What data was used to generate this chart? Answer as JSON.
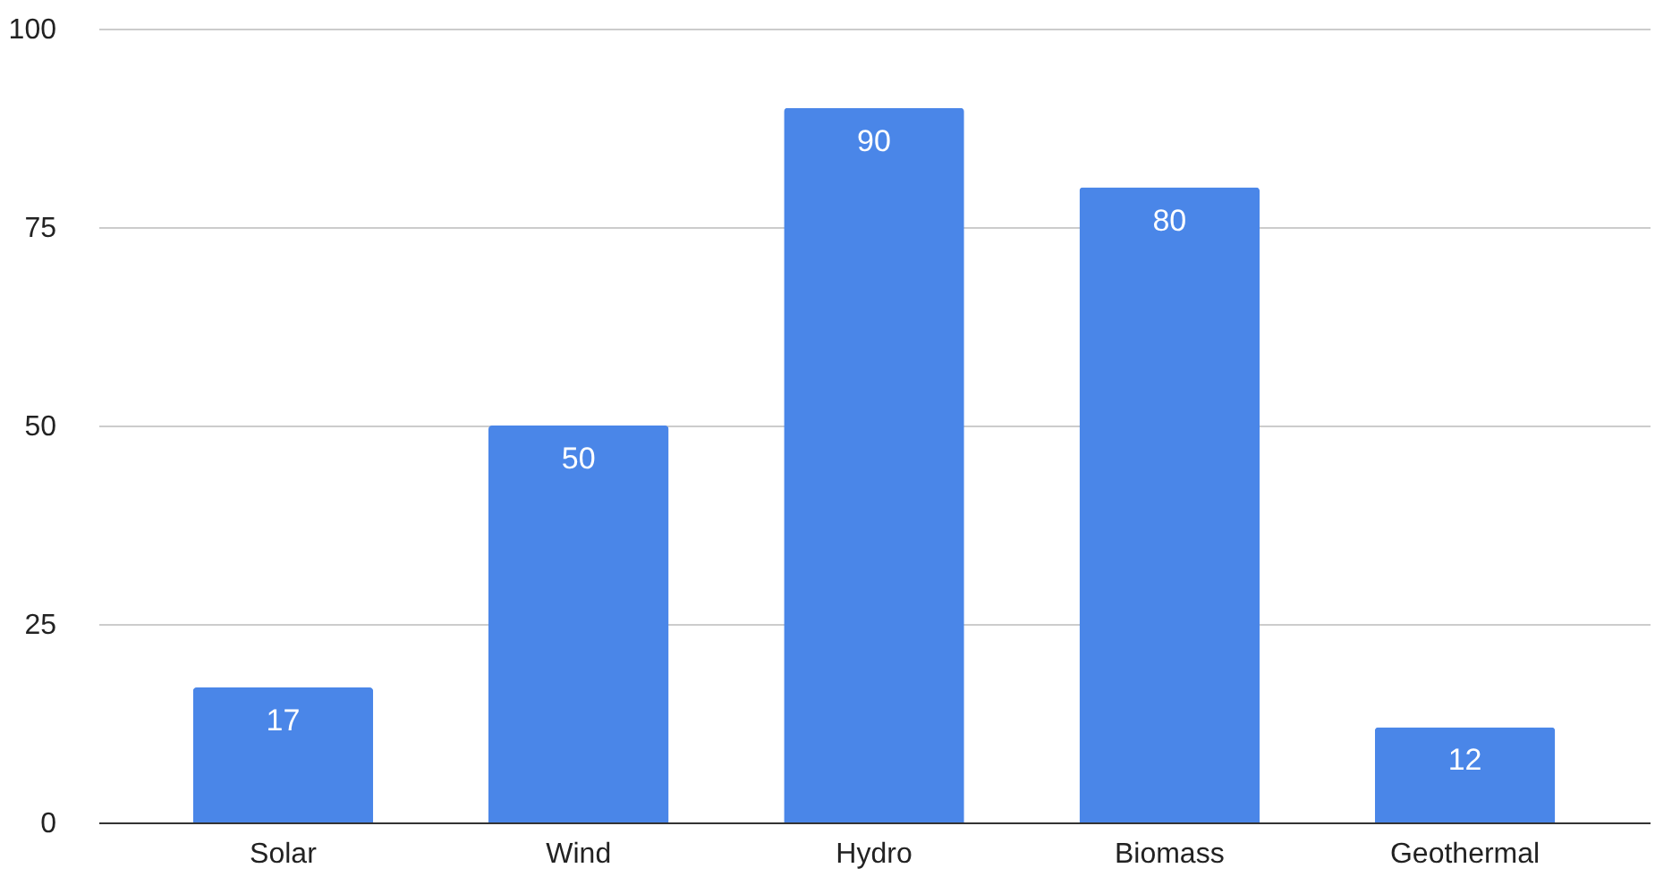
{
  "chart_data": {
    "type": "bar",
    "categories": [
      "Solar",
      "Wind",
      "Hydro",
      "Biomass",
      "Geothermal"
    ],
    "values": [
      17,
      50,
      90,
      80,
      12
    ],
    "color": "#4a86e8",
    "ylim": [
      0,
      100
    ],
    "yticks": [
      0,
      25,
      50,
      75,
      100
    ],
    "grid": "y",
    "data_labels": true
  }
}
